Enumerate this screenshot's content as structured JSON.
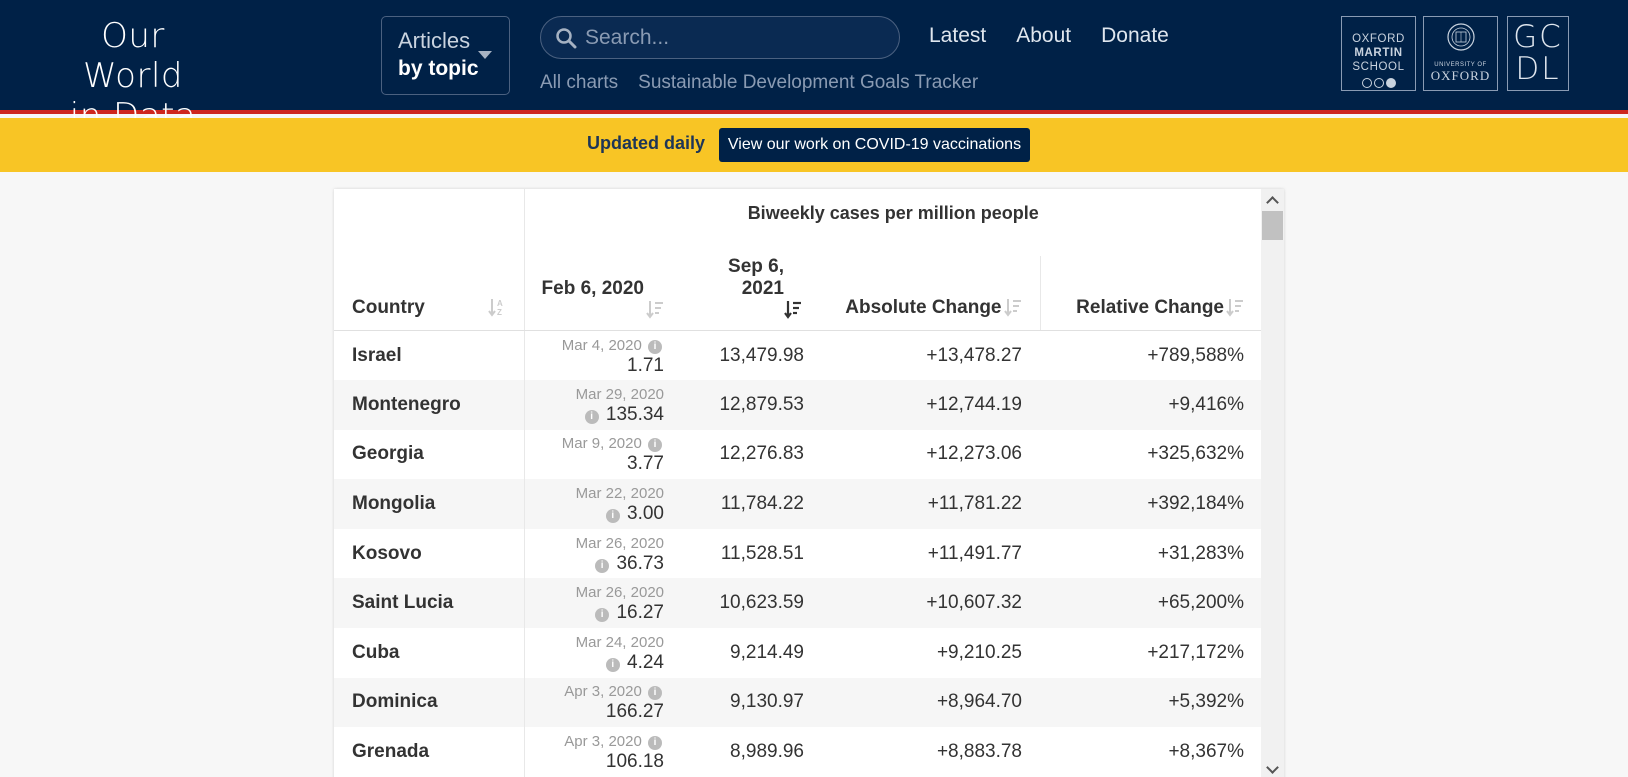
{
  "header": {
    "logo_line1": "Our World",
    "logo_line2": "in Data",
    "topics_line1": "Articles",
    "topics_line2": "by topic",
    "search_placeholder": "Search...",
    "nav": [
      "Latest",
      "About",
      "Donate"
    ],
    "sub_nav": [
      "All charts",
      "Sustainable Development Goals Tracker"
    ],
    "partners": {
      "oms": [
        "OXFORD",
        "MARTIN",
        "SCHOOL"
      ],
      "ox_small": "UNIVERSITY OF",
      "ox_big": "OXFORD",
      "gcdl_1": "GC",
      "gcdl_2": "DL"
    }
  },
  "banner": {
    "text": "Updated daily",
    "cta": "View our work on COVID-19 vaccinations"
  },
  "table": {
    "group_title": "Biweekly cases per million people",
    "columns": {
      "country": "Country",
      "start_date": "Feb 6, 2020",
      "end_date": "Sep 6, 2021",
      "absolute_change": "Absolute Change",
      "relative_change": "Relative Change"
    },
    "rows": [
      {
        "country": "Israel",
        "start_date": "Mar 4, 2020",
        "info_before": false,
        "start": "1.71",
        "end": "13,479.98",
        "abs": "+13,478.27",
        "rel": "+789,588%"
      },
      {
        "country": "Montenegro",
        "start_date": "Mar 29, 2020",
        "info_before": true,
        "start": "135.34",
        "end": "12,879.53",
        "abs": "+12,744.19",
        "rel": "+9,416%"
      },
      {
        "country": "Georgia",
        "start_date": "Mar 9, 2020",
        "info_before": false,
        "start": "3.77",
        "end": "12,276.83",
        "abs": "+12,273.06",
        "rel": "+325,632%"
      },
      {
        "country": "Mongolia",
        "start_date": "Mar 22, 2020",
        "info_before": true,
        "start": "3.00",
        "end": "11,784.22",
        "abs": "+11,781.22",
        "rel": "+392,184%"
      },
      {
        "country": "Kosovo",
        "start_date": "Mar 26, 2020",
        "info_before": true,
        "start": "36.73",
        "end": "11,528.51",
        "abs": "+11,491.77",
        "rel": "+31,283%"
      },
      {
        "country": "Saint Lucia",
        "start_date": "Mar 26, 2020",
        "info_before": true,
        "start": "16.27",
        "end": "10,623.59",
        "abs": "+10,607.32",
        "rel": "+65,200%"
      },
      {
        "country": "Cuba",
        "start_date": "Mar 24, 2020",
        "info_before": true,
        "start": "4.24",
        "end": "9,214.49",
        "abs": "+9,210.25",
        "rel": "+217,172%"
      },
      {
        "country": "Dominica",
        "start_date": "Apr 3, 2020",
        "info_before": false,
        "start": "166.27",
        "end": "9,130.97",
        "abs": "+8,964.70",
        "rel": "+5,392%"
      },
      {
        "country": "Grenada",
        "start_date": "Apr 3, 2020",
        "info_before": false,
        "start": "106.18",
        "end": "8,989.96",
        "abs": "+8,883.78",
        "rel": "+8,367%"
      }
    ]
  },
  "icons": {
    "search": "search-icon",
    "sort": "sort-icon",
    "info": "info-icon",
    "caret": "chevron-down-icon"
  },
  "colors": {
    "header_bg": "#002147",
    "header_border": "#ce261e",
    "banner_bg": "#f8c525",
    "cta_bg": "#002147"
  }
}
